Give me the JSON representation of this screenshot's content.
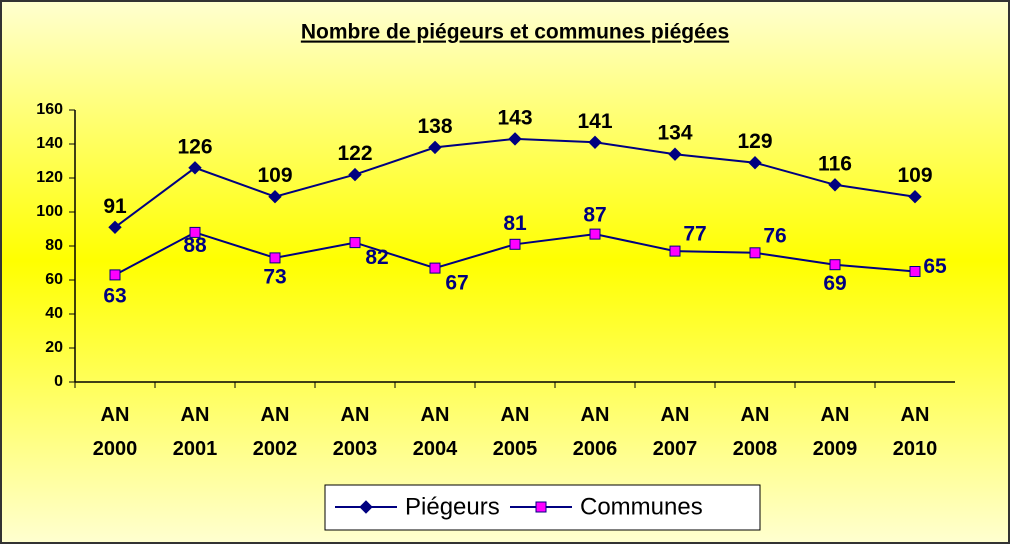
{
  "chart_data": {
    "type": "line",
    "title": "Nombre de piégeurs et communes piégées",
    "categories": [
      "AN 2000",
      "AN 2001",
      "AN 2002",
      "AN 2003",
      "AN 2004",
      "AN 2005",
      "AN 2006",
      "AN 2007",
      "AN 2008",
      "AN 2009",
      "AN 2010"
    ],
    "series": [
      {
        "name": "Piégeurs",
        "color": "#000080",
        "marker": "diamond",
        "marker_color": "#000080",
        "values": [
          91,
          126,
          109,
          122,
          138,
          143,
          141,
          134,
          129,
          116,
          109
        ]
      },
      {
        "name": "Communes",
        "color": "#000080",
        "marker": "square",
        "marker_color": "#ff00ff",
        "values": [
          63,
          88,
          73,
          82,
          67,
          81,
          87,
          77,
          76,
          69,
          65
        ]
      }
    ],
    "ylim": [
      0,
      160
    ],
    "yticks": [
      0,
      20,
      40,
      60,
      80,
      100,
      120,
      140,
      160
    ],
    "grid": false,
    "legend": "bottom"
  }
}
